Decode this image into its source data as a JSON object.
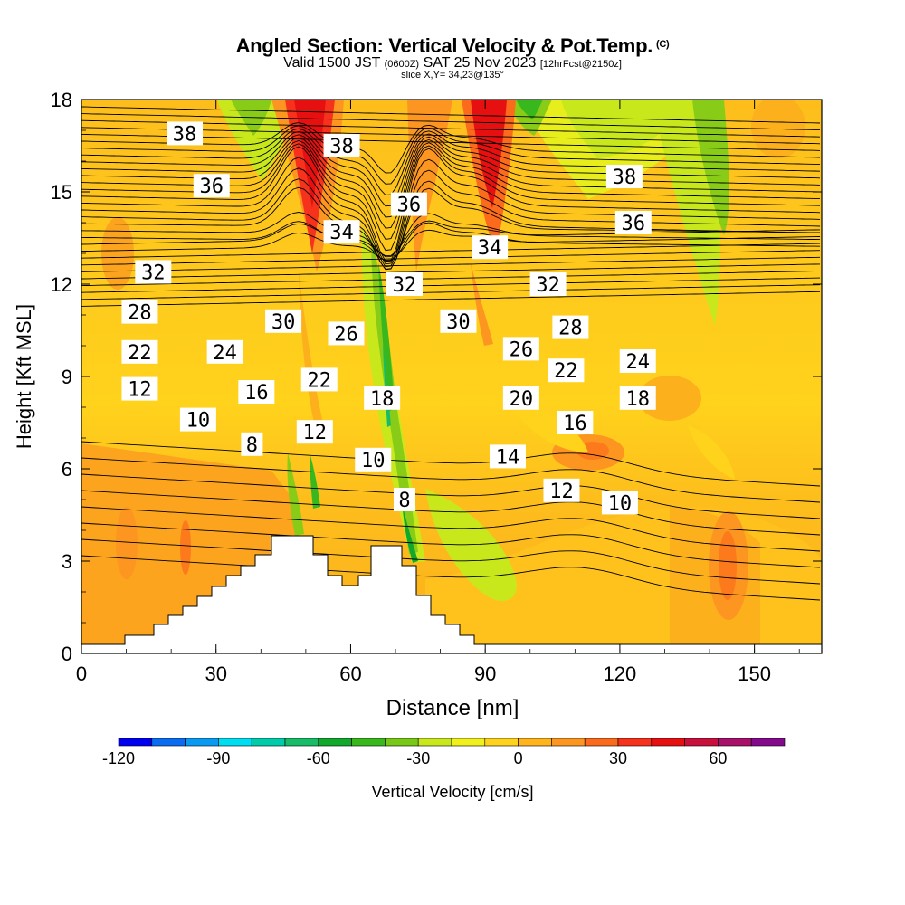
{
  "title": {
    "main": "Angled Section: Vertical Velocity & Pot.Temp.",
    "copyright_mark": "(C)",
    "valid_prefix": "Valid 1500 JST",
    "valid_utc": "(0600Z)",
    "valid_date": "SAT 25 Nov 2023",
    "forecast": "[12hrFcst@2150z]",
    "slice": "slice X,Y= 34,23@135°"
  },
  "chart_data": {
    "type": "heatmap",
    "xlabel": "Distance [nm]",
    "ylabel": "Height [Kft MSL]",
    "xlim": [
      0,
      165
    ],
    "ylim": [
      0,
      18
    ],
    "x_ticks": [
      0,
      30,
      60,
      90,
      120,
      150
    ],
    "y_ticks": [
      0,
      3,
      6,
      9,
      12,
      15,
      18
    ],
    "colorbar": {
      "label": "Vertical Velocity [cm/s]",
      "ticks": [
        -120,
        -90,
        -60,
        -30,
        0,
        30,
        60
      ],
      "range": [
        -120,
        80
      ],
      "colors": [
        "#0000f0",
        "#0a6cf0",
        "#0a9af2",
        "#00dcf0",
        "#00ccaa",
        "#18bb68",
        "#11a82c",
        "#38b81c",
        "#78c818",
        "#c8e81c",
        "#f0f01c",
        "#ffd21c",
        "#ffb41c",
        "#fc9620",
        "#fc6a1c",
        "#f6321c",
        "#e61010",
        "#c8103c",
        "#a8106a",
        "#840a8c"
      ]
    },
    "shaded_field": "Vertical Velocity [cm/s]",
    "contour_field": "Potential Temperature",
    "contour_labels": [
      {
        "value": "38",
        "x": 23,
        "y": 16.9
      },
      {
        "value": "38",
        "x": 58,
        "y": 16.5
      },
      {
        "value": "38",
        "x": 121,
        "y": 15.5
      },
      {
        "value": "36",
        "x": 29,
        "y": 15.2
      },
      {
        "value": "36",
        "x": 73,
        "y": 14.6
      },
      {
        "value": "36",
        "x": 123,
        "y": 14.0
      },
      {
        "value": "34",
        "x": 58,
        "y": 13.7
      },
      {
        "value": "34",
        "x": 91,
        "y": 13.2
      },
      {
        "value": "32",
        "x": 16,
        "y": 12.4
      },
      {
        "value": "32",
        "x": 72,
        "y": 12.0
      },
      {
        "value": "32",
        "x": 104,
        "y": 12.0
      },
      {
        "value": "30",
        "x": 45,
        "y": 10.8
      },
      {
        "value": "30",
        "x": 84,
        "y": 10.8
      },
      {
        "value": "28",
        "x": 13,
        "y": 11.1
      },
      {
        "value": "28",
        "x": 109,
        "y": 10.6
      },
      {
        "value": "26",
        "x": 59,
        "y": 10.4
      },
      {
        "value": "26",
        "x": 98,
        "y": 9.9
      },
      {
        "value": "24",
        "x": 32,
        "y": 9.8
      },
      {
        "value": "24",
        "x": 124,
        "y": 9.5
      },
      {
        "value": "22",
        "x": 13,
        "y": 9.8
      },
      {
        "value": "22",
        "x": 53,
        "y": 8.9
      },
      {
        "value": "22",
        "x": 108,
        "y": 9.2
      },
      {
        "value": "20",
        "x": 98,
        "y": 8.3
      },
      {
        "value": "18",
        "x": 67,
        "y": 8.3
      },
      {
        "value": "18",
        "x": 124,
        "y": 8.3
      },
      {
        "value": "16",
        "x": 39,
        "y": 8.5
      },
      {
        "value": "16",
        "x": 110,
        "y": 7.5
      },
      {
        "value": "14",
        "x": 95,
        "y": 6.4
      },
      {
        "value": "12",
        "x": 13,
        "y": 8.6
      },
      {
        "value": "12",
        "x": 52,
        "y": 7.2
      },
      {
        "value": "12",
        "x": 107,
        "y": 5.3
      },
      {
        "value": "10",
        "x": 26,
        "y": 7.6
      },
      {
        "value": "10",
        "x": 65,
        "y": 6.3
      },
      {
        "value": "10",
        "x": 120,
        "y": 4.9
      },
      {
        "value": "8",
        "x": 38,
        "y": 6.8
      },
      {
        "value": "8",
        "x": 72,
        "y": 5.0
      }
    ]
  }
}
